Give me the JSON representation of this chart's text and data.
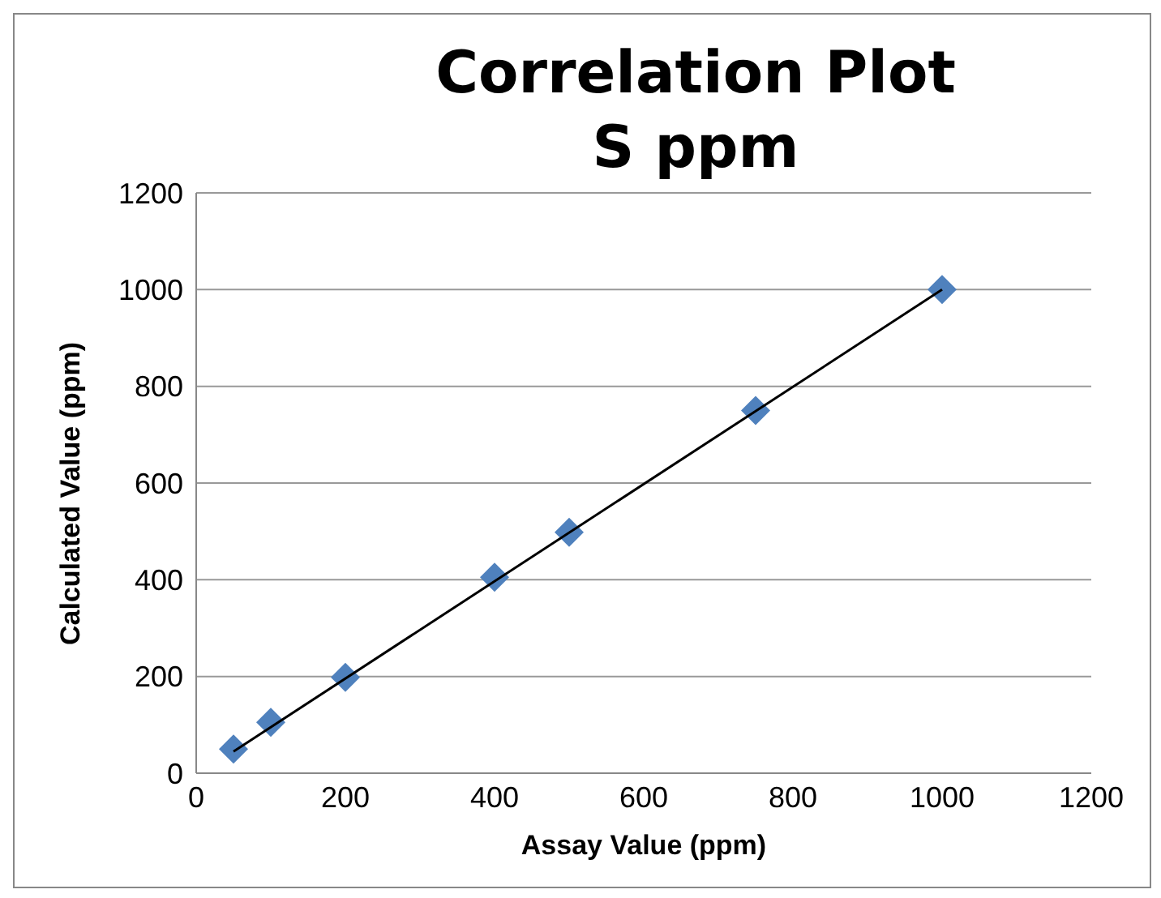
{
  "chart_data": {
    "type": "scatter",
    "title": "Correlation Plot\nS ppm",
    "xlabel": "Assay Value (ppm)",
    "ylabel": "Calculated Value (ppm)",
    "xlim": [
      0,
      1200
    ],
    "xticks": [
      0,
      200,
      400,
      600,
      800,
      1000,
      1200
    ],
    "ylim": [
      0,
      1200
    ],
    "yticks": [
      0,
      200,
      400,
      600,
      800,
      1000,
      1200
    ],
    "grid": "y",
    "legend": false,
    "marker": "diamond",
    "series": [
      {
        "color": "#4f81bd",
        "x": [
          50,
          100,
          200,
          400,
          500,
          750,
          1000
        ],
        "values": [
          50,
          105,
          198,
          405,
          498,
          750,
          1000
        ]
      },
      {
        "type": "line",
        "color": "#000000",
        "marker": "none",
        "x": [
          50,
          1000
        ],
        "values": [
          45,
          1000
        ]
      }
    ]
  }
}
